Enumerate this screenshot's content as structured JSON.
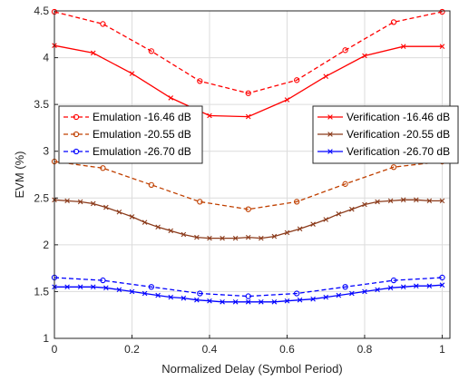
{
  "chart_data": {
    "type": "line",
    "xlabel": "Normalized Delay (Symbol Period)",
    "ylabel": "EVM (%)",
    "xlim": [
      0,
      1.02
    ],
    "ylim": [
      1,
      4.5
    ],
    "xticks": [
      0,
      0.2,
      0.4,
      0.6,
      0.8,
      1
    ],
    "xtick_labels": [
      "0",
      "0.2",
      "0.4",
      "0.6",
      "0.8",
      "1"
    ],
    "yticks": [
      1,
      1.5,
      2,
      2.5,
      3,
      3.5,
      4,
      4.5
    ],
    "ytick_labels": [
      "1",
      "1.5",
      "2",
      "2.5",
      "3",
      "3.5",
      "4",
      "4.5"
    ],
    "grid": true,
    "legends": [
      {
        "placement": "left",
        "entries": [
          "Emulation -16.46 dB",
          "Emulation -20.55 dB",
          "Emulation -26.70 dB"
        ]
      },
      {
        "placement": "right",
        "entries": [
          "Verification -16.46 dB",
          "Verification -20.55 dB",
          "Verification -26.70 dB"
        ]
      }
    ],
    "series": [
      {
        "name": "Emulation -16.46 dB",
        "color": "#ff0000",
        "dashed": true,
        "marker": "circle",
        "x": [
          0,
          0.125,
          0.25,
          0.375,
          0.5,
          0.625,
          0.75,
          0.875,
          1.0
        ],
        "y": [
          4.49,
          4.36,
          4.07,
          3.75,
          3.62,
          3.76,
          4.08,
          4.38,
          4.49
        ]
      },
      {
        "name": "Emulation -20.55 dB",
        "color": "#c04000",
        "dashed": true,
        "marker": "circle",
        "x": [
          0,
          0.125,
          0.25,
          0.375,
          0.5,
          0.625,
          0.75,
          0.875,
          1.0
        ],
        "y": [
          2.89,
          2.82,
          2.64,
          2.46,
          2.38,
          2.46,
          2.65,
          2.83,
          2.89
        ]
      },
      {
        "name": "Emulation -26.70 dB",
        "color": "#0000ff",
        "dashed": true,
        "marker": "circle",
        "x": [
          0,
          0.125,
          0.25,
          0.375,
          0.5,
          0.625,
          0.75,
          0.875,
          1.0
        ],
        "y": [
          1.65,
          1.62,
          1.55,
          1.48,
          1.45,
          1.48,
          1.55,
          1.62,
          1.65
        ]
      },
      {
        "name": "Verification -16.46 dB",
        "color": "#ff0000",
        "dashed": false,
        "marker": "x",
        "x": [
          0,
          0.1,
          0.2,
          0.3,
          0.4,
          0.5,
          0.6,
          0.7,
          0.8,
          0.9,
          1.0
        ],
        "y": [
          4.13,
          4.05,
          3.83,
          3.57,
          3.38,
          3.37,
          3.55,
          3.8,
          4.02,
          4.12,
          4.12
        ]
      },
      {
        "name": "Verification -20.55 dB",
        "color": "#8b3a1a",
        "dashed": false,
        "marker": "x",
        "x": [
          0,
          0.033,
          0.067,
          0.1,
          0.133,
          0.167,
          0.2,
          0.233,
          0.267,
          0.3,
          0.333,
          0.367,
          0.4,
          0.433,
          0.467,
          0.5,
          0.533,
          0.567,
          0.6,
          0.633,
          0.667,
          0.7,
          0.733,
          0.767,
          0.8,
          0.833,
          0.867,
          0.9,
          0.933,
          0.967,
          1.0
        ],
        "y": [
          2.48,
          2.47,
          2.46,
          2.44,
          2.4,
          2.35,
          2.3,
          2.24,
          2.19,
          2.15,
          2.11,
          2.08,
          2.07,
          2.07,
          2.07,
          2.08,
          2.07,
          2.09,
          2.13,
          2.17,
          2.22,
          2.27,
          2.33,
          2.38,
          2.43,
          2.46,
          2.47,
          2.48,
          2.48,
          2.47,
          2.47
        ]
      },
      {
        "name": "Verification -26.70 dB",
        "color": "#0000ff",
        "dashed": false,
        "marker": "x",
        "x": [
          0,
          0.033,
          0.067,
          0.1,
          0.133,
          0.167,
          0.2,
          0.233,
          0.267,
          0.3,
          0.333,
          0.367,
          0.4,
          0.433,
          0.467,
          0.5,
          0.533,
          0.567,
          0.6,
          0.633,
          0.667,
          0.7,
          0.733,
          0.767,
          0.8,
          0.833,
          0.867,
          0.9,
          0.933,
          0.967,
          1.0
        ],
        "y": [
          1.55,
          1.55,
          1.55,
          1.55,
          1.54,
          1.52,
          1.5,
          1.48,
          1.46,
          1.44,
          1.43,
          1.41,
          1.4,
          1.39,
          1.39,
          1.39,
          1.39,
          1.39,
          1.4,
          1.41,
          1.42,
          1.44,
          1.46,
          1.48,
          1.5,
          1.52,
          1.54,
          1.55,
          1.56,
          1.56,
          1.57
        ]
      }
    ]
  }
}
